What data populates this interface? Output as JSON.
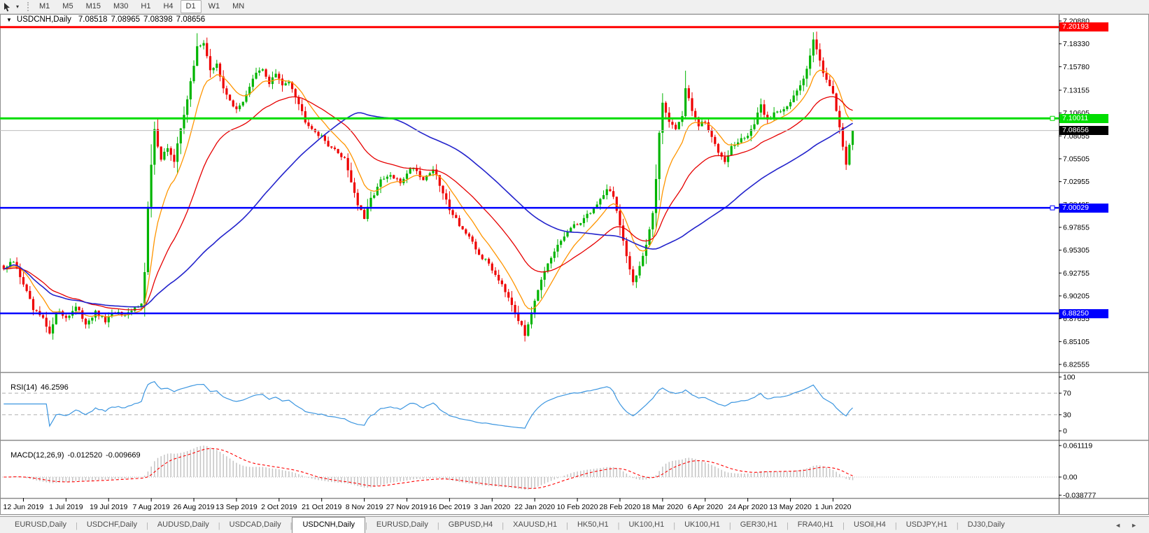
{
  "icons": {
    "collapse": "▼",
    "dropdown": "▾",
    "scroll_left": "◄",
    "scroll_right": "►"
  },
  "toolbar": {
    "timeframes": [
      "M1",
      "M5",
      "M15",
      "M30",
      "H1",
      "H4",
      "D1",
      "W1",
      "MN"
    ],
    "active_timeframe": "D1"
  },
  "window": {
    "symbol_title": "USDCNH,Daily",
    "ohlc": {
      "open": "7.08518",
      "high": "7.08965",
      "low": "7.08398",
      "close": "7.08656"
    }
  },
  "price_axis": {
    "ticks": [
      "7.20880",
      "7.18330",
      "7.15780",
      "7.13155",
      "7.10605",
      "7.08055",
      "7.05505",
      "7.02955",
      "7.00405",
      "6.97855",
      "6.95305",
      "6.92755",
      "6.90205",
      "6.87655",
      "6.85105",
      "6.82555"
    ],
    "current_price": "7.08656",
    "current_price_value": 7.08656,
    "current_badge_color": "#000000"
  },
  "hlines": [
    {
      "label": "7.20193",
      "value": 7.20193,
      "color": "#FF0000",
      "width": 3,
      "handle": false
    },
    {
      "label": "7.10011",
      "value": 7.10011,
      "color": "#00DD00",
      "width": 3,
      "handle": true
    },
    {
      "label": "7.00029",
      "value": 7.00029,
      "color": "#0000FF",
      "width": 2.5,
      "handle": true
    },
    {
      "label": "6.88250",
      "value": 6.8825,
      "color": "#0000FF",
      "width": 2.5,
      "handle": false
    }
  ],
  "rsi": {
    "name": "RSI(14)",
    "value": "46.2596",
    "axis_ticks": [
      "100",
      "70",
      "30",
      "0"
    ],
    "levels": [
      70,
      30
    ],
    "line_color": "#3C96E0"
  },
  "macd": {
    "name": "MACD(12,26,9)",
    "value": "-0.012520",
    "signal_value": "-0.009669",
    "axis_ticks": [
      "0.061119",
      "0.00",
      "-0.038777"
    ],
    "hist_color": "#C4C4C4",
    "signal_color": "#FF0000"
  },
  "date_axis": {
    "labels": [
      "12 Jun 2019",
      "1 Jul 2019",
      "19 Jul 2019",
      "7 Aug 2019",
      "26 Aug 2019",
      "13 Sep 2019",
      "2 Oct 2019",
      "21 Oct 2019",
      "8 Nov 2019",
      "27 Nov 2019",
      "16 Dec 2019",
      "3 Jan 2020",
      "22 Jan 2020",
      "10 Feb 2020",
      "28 Feb 2020",
      "18 Mar 2020",
      "6 Apr 2020",
      "24 Apr 2020",
      "13 May 2020",
      "1 Jun 2020"
    ]
  },
  "tabs": {
    "items": [
      "EURUSD,Daily",
      "USDCHF,Daily",
      "AUDUSD,Daily",
      "USDCAD,Daily",
      "USDCNH,Daily",
      "EURUSD,Daily",
      "GBPUSD,H4",
      "XAUUSD,H1",
      "HK50,H1",
      "UK100,H1",
      "UK100,H1",
      "GER30,H1",
      "FRA40,H1",
      "USOil,H4",
      "USDJPY,H1",
      "DJ30,Daily"
    ],
    "active_index": 4
  },
  "chart_data": {
    "type": "candlestick",
    "symbol": "USDCNH",
    "timeframe": "Daily",
    "bars": 260,
    "last_close": 7.08656,
    "axis_top": 7.2088,
    "axis_bottom": 6.82555,
    "up_color": "#00B400",
    "down_color": "#EE0000",
    "moving_averages": [
      {
        "name": "fast",
        "period": 10,
        "type": "ema",
        "color": "#FF9500",
        "width": 1.3
      },
      {
        "name": "medium",
        "period": 30,
        "type": "ema",
        "color": "#E60000",
        "width": 1.3
      },
      {
        "name": "slow",
        "period": 65,
        "type": "sma",
        "color": "#2323CC",
        "width": 1.6
      }
    ],
    "close_anchors": [
      [
        0,
        6.932
      ],
      [
        3,
        6.94
      ],
      [
        6,
        6.916
      ],
      [
        9,
        6.886
      ],
      [
        12,
        6.876
      ],
      [
        14,
        6.858
      ],
      [
        16,
        6.886
      ],
      [
        19,
        6.878
      ],
      [
        22,
        6.889
      ],
      [
        25,
        6.872
      ],
      [
        28,
        6.883
      ],
      [
        31,
        6.874
      ],
      [
        34,
        6.884
      ],
      [
        37,
        6.878
      ],
      [
        40,
        6.888
      ],
      [
        42,
        6.896
      ],
      [
        43,
        6.928
      ],
      [
        44,
        7.0
      ],
      [
        45,
        7.048
      ],
      [
        46,
        7.086
      ],
      [
        48,
        7.056
      ],
      [
        50,
        7.068
      ],
      [
        52,
        7.05
      ],
      [
        54,
        7.09
      ],
      [
        56,
        7.122
      ],
      [
        58,
        7.158
      ],
      [
        59,
        7.18
      ],
      [
        61,
        7.186
      ],
      [
        63,
        7.152
      ],
      [
        65,
        7.162
      ],
      [
        67,
        7.132
      ],
      [
        69,
        7.122
      ],
      [
        71,
        7.108
      ],
      [
        73,
        7.12
      ],
      [
        75,
        7.136
      ],
      [
        77,
        7.15
      ],
      [
        79,
        7.154
      ],
      [
        81,
        7.14
      ],
      [
        83,
        7.15
      ],
      [
        85,
        7.136
      ],
      [
        87,
        7.143
      ],
      [
        89,
        7.126
      ],
      [
        92,
        7.098
      ],
      [
        95,
        7.086
      ],
      [
        98,
        7.075
      ],
      [
        101,
        7.064
      ],
      [
        104,
        7.056
      ],
      [
        106,
        7.03
      ],
      [
        108,
        7.004
      ],
      [
        110,
        6.988
      ],
      [
        112,
        7.01
      ],
      [
        115,
        7.03
      ],
      [
        118,
        7.036
      ],
      [
        121,
        7.028
      ],
      [
        123,
        7.04
      ],
      [
        125,
        7.046
      ],
      [
        128,
        7.032
      ],
      [
        131,
        7.044
      ],
      [
        134,
        7.016
      ],
      [
        136,
        7.0
      ],
      [
        139,
        6.982
      ],
      [
        142,
        6.966
      ],
      [
        145,
        6.948
      ],
      [
        148,
        6.938
      ],
      [
        150,
        6.926
      ],
      [
        152,
        6.916
      ],
      [
        155,
        6.894
      ],
      [
        157,
        6.876
      ],
      [
        159,
        6.858
      ],
      [
        161,
        6.886
      ],
      [
        163,
        6.91
      ],
      [
        166,
        6.936
      ],
      [
        169,
        6.958
      ],
      [
        172,
        6.974
      ],
      [
        175,
        6.982
      ],
      [
        178,
        6.992
      ],
      [
        181,
        7.004
      ],
      [
        184,
        7.022
      ],
      [
        186,
        7.014
      ],
      [
        188,
        6.98
      ],
      [
        190,
        6.944
      ],
      [
        192,
        6.918
      ],
      [
        194,
        6.936
      ],
      [
        196,
        6.96
      ],
      [
        198,
        6.994
      ],
      [
        199,
        7.03
      ],
      [
        200,
        7.085
      ],
      [
        201,
        7.118
      ],
      [
        203,
        7.098
      ],
      [
        205,
        7.088
      ],
      [
        207,
        7.104
      ],
      [
        208,
        7.134
      ],
      [
        210,
        7.108
      ],
      [
        212,
        7.092
      ],
      [
        214,
        7.096
      ],
      [
        216,
        7.078
      ],
      [
        218,
        7.064
      ],
      [
        220,
        7.054
      ],
      [
        222,
        7.068
      ],
      [
        225,
        7.076
      ],
      [
        227,
        7.082
      ],
      [
        229,
        7.094
      ],
      [
        231,
        7.114
      ],
      [
        233,
        7.098
      ],
      [
        235,
        7.106
      ],
      [
        238,
        7.112
      ],
      [
        240,
        7.118
      ],
      [
        242,
        7.13
      ],
      [
        244,
        7.144
      ],
      [
        246,
        7.172
      ],
      [
        247,
        7.19
      ],
      [
        248,
        7.176
      ],
      [
        250,
        7.152
      ],
      [
        253,
        7.13
      ],
      [
        254,
        7.108
      ],
      [
        255,
        7.088
      ],
      [
        256,
        7.066
      ],
      [
        257,
        7.05
      ],
      [
        258,
        7.07
      ],
      [
        259,
        7.0866
      ]
    ],
    "first_label_bar": 6,
    "label_bar_step": 13
  }
}
